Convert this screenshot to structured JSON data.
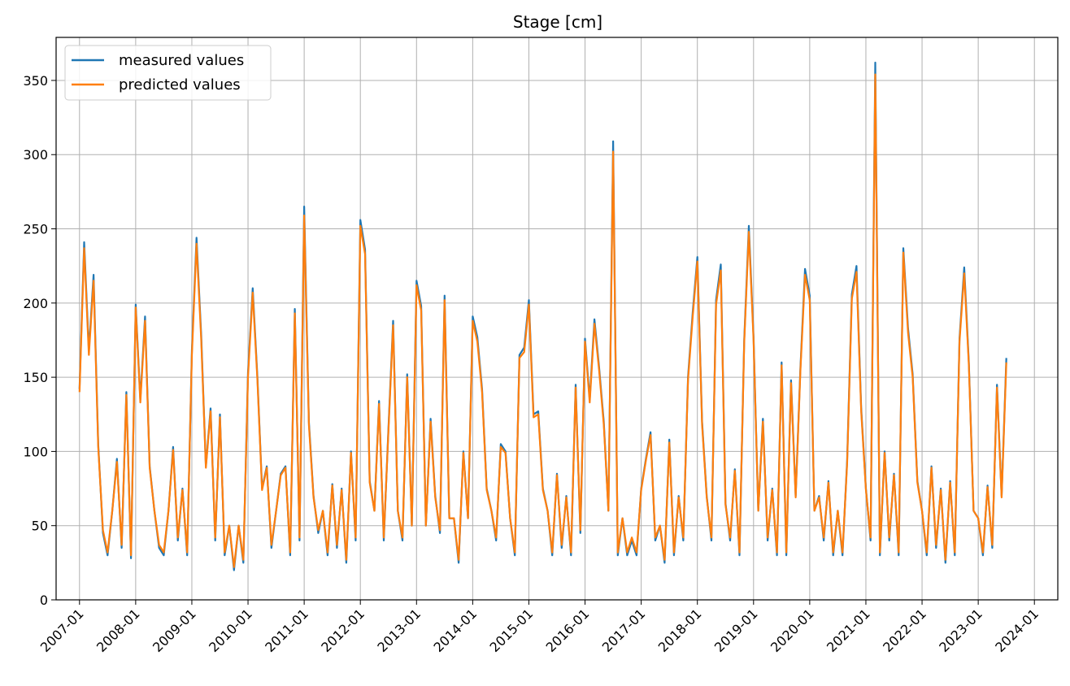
{
  "chart_data": {
    "type": "line",
    "title": "Stage [cm]",
    "xlabel": "",
    "ylabel": "",
    "x_ticks": [
      "2007-01",
      "2008-01",
      "2009-01",
      "2010-01",
      "2011-01",
      "2012-01",
      "2013-01",
      "2014-01",
      "2015-01",
      "2016-01",
      "2017-01",
      "2018-01",
      "2019-01",
      "2020-01",
      "2021-01",
      "2022-01",
      "2023-01",
      "2024-01"
    ],
    "y_ticks": [
      0,
      50,
      100,
      150,
      200,
      250,
      300,
      350
    ],
    "xlim": [
      "2006-08",
      "2024-06"
    ],
    "ylim": [
      0,
      379
    ],
    "grid": true,
    "legend_position": "top-left",
    "series": [
      {
        "name": "measured values",
        "color": "#1f77b4"
      },
      {
        "name": "predicted values",
        "color": "#ff7f0e"
      }
    ],
    "x": [
      "2007-01",
      "2007-02",
      "2007-03",
      "2007-04",
      "2007-05",
      "2007-06",
      "2007-07",
      "2007-08",
      "2007-09",
      "2007-10",
      "2007-11",
      "2007-12",
      "2008-01",
      "2008-02",
      "2008-03",
      "2008-04",
      "2008-05",
      "2008-06",
      "2008-07",
      "2008-08",
      "2008-09",
      "2008-10",
      "2008-11",
      "2008-12",
      "2009-01",
      "2009-02",
      "2009-03",
      "2009-04",
      "2009-05",
      "2009-06",
      "2009-07",
      "2009-08",
      "2009-09",
      "2009-10",
      "2009-11",
      "2009-12",
      "2010-01",
      "2010-02",
      "2010-03",
      "2010-04",
      "2010-05",
      "2010-06",
      "2010-07",
      "2010-08",
      "2010-09",
      "2010-10",
      "2010-11",
      "2010-12",
      "2011-01",
      "2011-02",
      "2011-03",
      "2011-04",
      "2011-05",
      "2011-06",
      "2011-07",
      "2011-08",
      "2011-09",
      "2011-10",
      "2011-11",
      "2011-12",
      "2012-01",
      "2012-02",
      "2012-03",
      "2012-04",
      "2012-05",
      "2012-06",
      "2012-07",
      "2012-08",
      "2012-09",
      "2012-10",
      "2012-11",
      "2012-12",
      "2013-01",
      "2013-02",
      "2013-03",
      "2013-04",
      "2013-05",
      "2013-06",
      "2013-07",
      "2013-08",
      "2013-09",
      "2013-10",
      "2013-11",
      "2013-12",
      "2014-01",
      "2014-02",
      "2014-03",
      "2014-04",
      "2014-05",
      "2014-06",
      "2014-07",
      "2014-08",
      "2014-09",
      "2014-10",
      "2014-11",
      "2014-12",
      "2015-01",
      "2015-02",
      "2015-03",
      "2015-04",
      "2015-05",
      "2015-06",
      "2015-07",
      "2015-08",
      "2015-09",
      "2015-10",
      "2015-11",
      "2015-12",
      "2016-01",
      "2016-02",
      "2016-03",
      "2016-04",
      "2016-05",
      "2016-06",
      "2016-07",
      "2016-08",
      "2016-09",
      "2016-10",
      "2016-11",
      "2016-12",
      "2017-01",
      "2017-02",
      "2017-03",
      "2017-04",
      "2017-05",
      "2017-06",
      "2017-07",
      "2017-08",
      "2017-09",
      "2017-10",
      "2017-11",
      "2017-12",
      "2018-01",
      "2018-02",
      "2018-03",
      "2018-04",
      "2018-05",
      "2018-06",
      "2018-07",
      "2018-08",
      "2018-09",
      "2018-10",
      "2018-11",
      "2018-12",
      "2019-01",
      "2019-02",
      "2019-03",
      "2019-04",
      "2019-05",
      "2019-06",
      "2019-07",
      "2019-08",
      "2019-09",
      "2019-10",
      "2019-11",
      "2019-12",
      "2020-01",
      "2020-02",
      "2020-03",
      "2020-04",
      "2020-05",
      "2020-06",
      "2020-07",
      "2020-08",
      "2020-09",
      "2020-10",
      "2020-11",
      "2020-12",
      "2021-01",
      "2021-02",
      "2021-03",
      "2021-04",
      "2021-05",
      "2021-06",
      "2021-07",
      "2021-08",
      "2021-09",
      "2021-10",
      "2021-11",
      "2021-12",
      "2022-01",
      "2022-02",
      "2022-03",
      "2022-04",
      "2022-05",
      "2022-06",
      "2022-07",
      "2022-08",
      "2022-09",
      "2022-10",
      "2022-11",
      "2022-12",
      "2023-01",
      "2023-02",
      "2023-03",
      "2023-04",
      "2023-05",
      "2023-06",
      "2023-07",
      "2023-08",
      "2023-09",
      "2023-10",
      "2023-11",
      "2023-12",
      "2024-01"
    ],
    "measured": [
      142,
      241,
      168,
      219,
      105,
      45,
      30,
      60,
      95,
      35,
      140,
      28,
      199,
      135,
      191,
      90,
      60,
      35,
      30,
      60,
      103,
      40,
      75,
      30,
      168,
      244,
      178,
      90,
      129,
      40,
      125,
      30,
      50,
      20,
      50,
      25,
      153,
      210,
      150,
      75,
      90,
      35,
      60,
      85,
      90,
      30,
      196,
      40,
      265,
      120,
      70,
      45,
      60,
      30,
      78,
      35,
      75,
      25,
      100,
      40,
      256,
      236,
      80,
      60,
      134,
      40,
      115,
      188,
      60,
      40,
      152,
      50,
      215,
      198,
      50,
      122,
      70,
      45,
      205,
      55,
      55,
      25,
      100,
      55,
      191,
      177,
      142,
      75,
      60,
      40,
      105,
      100,
      55,
      30,
      165,
      170,
      202,
      125,
      127,
      75,
      60,
      30,
      85,
      35,
      70,
      30,
      145,
      45,
      176,
      135,
      189,
      157,
      120,
      60,
      309,
      30,
      55,
      30,
      40,
      30,
      75,
      95,
      113,
      40,
      50,
      25,
      108,
      30,
      70,
      40,
      150,
      194,
      231,
      120,
      70,
      40,
      202,
      226,
      65,
      40,
      88,
      30,
      175,
      252,
      177,
      60,
      122,
      40,
      75,
      30,
      160,
      30,
      148,
      70,
      156,
      223,
      205,
      60,
      70,
      40,
      80,
      30,
      60,
      30,
      94,
      206,
      225,
      129,
      75,
      40,
      362,
      30,
      100,
      40,
      85,
      30,
      237,
      183,
      152,
      80,
      60,
      30,
      90,
      35,
      75,
      25,
      80,
      30,
      176,
      224,
      160,
      60,
      55,
      30,
      77,
      35,
      145,
      70,
      163
    ],
    "predicted": [
      140,
      237,
      165,
      215,
      103,
      47,
      32,
      60,
      93,
      37,
      138,
      30,
      197,
      133,
      188,
      89,
      60,
      37,
      32,
      60,
      101,
      42,
      74,
      32,
      165,
      240,
      175,
      89,
      127,
      42,
      123,
      32,
      50,
      22,
      50,
      27,
      150,
      207,
      148,
      74,
      89,
      37,
      60,
      84,
      89,
      32,
      193,
      42,
      259,
      118,
      69,
      47,
      60,
      32,
      77,
      37,
      74,
      27,
      99,
      42,
      252,
      233,
      79,
      60,
      132,
      42,
      113,
      185,
      60,
      42,
      150,
      50,
      212,
      195,
      50,
      120,
      69,
      47,
      202,
      55,
      55,
      27,
      99,
      55,
      188,
      174,
      140,
      74,
      60,
      42,
      103,
      99,
      55,
      32,
      163,
      167,
      199,
      123,
      125,
      74,
      60,
      32,
      84,
      37,
      69,
      32,
      143,
      47,
      174,
      133,
      186,
      155,
      118,
      60,
      302,
      32,
      55,
      32,
      42,
      32,
      74,
      94,
      111,
      42,
      50,
      27,
      106,
      32,
      69,
      42,
      148,
      191,
      228,
      118,
      69,
      42,
      199,
      222,
      64,
      42,
      87,
      32,
      173,
      248,
      175,
      60,
      120,
      42,
      74,
      32,
      158,
      32,
      146,
      69,
      154,
      219,
      202,
      60,
      69,
      42,
      79,
      32,
      60,
      32,
      92,
      203,
      221,
      127,
      74,
      42,
      354,
      32,
      99,
      42,
      84,
      32,
      234,
      180,
      150,
      79,
      60,
      32,
      89,
      37,
      74,
      27,
      79,
      32,
      174,
      220,
      158,
      60,
      55,
      32,
      76,
      37,
      143,
      69,
      160
    ]
  }
}
